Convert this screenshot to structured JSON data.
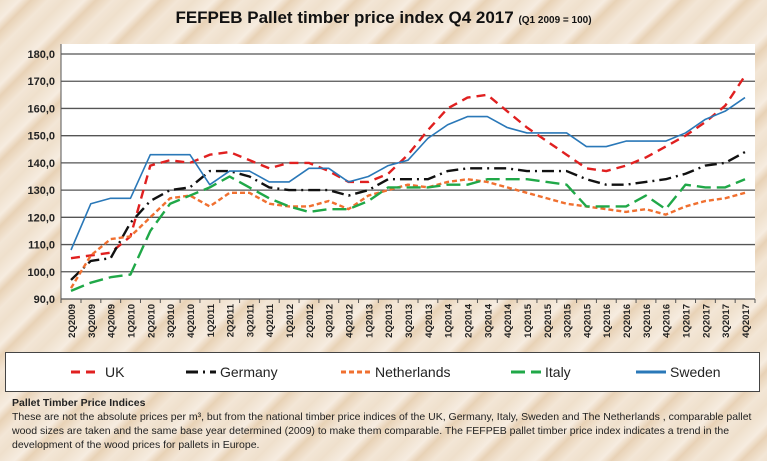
{
  "chart_data": {
    "type": "line",
    "title": "FEFPEB Pallet timber price index Q4 2017",
    "subtitle": "(Q1 2009 = 100)",
    "xlabel": "",
    "ylabel": "",
    "ylim": [
      90,
      180
    ],
    "yticks": [
      "90,0",
      "100,0",
      "110,0",
      "120,0",
      "130,0",
      "140,0",
      "150,0",
      "160,0",
      "170,0",
      "180,0"
    ],
    "grid": true,
    "legend_placement": "bottom",
    "categories": [
      "2Q2009",
      "3Q2009",
      "4Q2009",
      "1Q2010",
      "2Q2010",
      "3Q2010",
      "4Q2010",
      "1Q2011",
      "2Q2011",
      "3Q2011",
      "4Q2011",
      "1Q2012",
      "2Q2012",
      "3Q2012",
      "4Q2012",
      "1Q2013",
      "2Q2013",
      "3Q2013",
      "4Q2013",
      "1Q2014",
      "2Q2014",
      "3Q2014",
      "4Q2014",
      "1Q2015",
      "2Q2015",
      "3Q2015",
      "4Q2015",
      "1Q2016",
      "2Q2016",
      "3Q2016",
      "4Q2016",
      "1Q2017",
      "2Q2017",
      "3Q2017",
      "4Q2017"
    ],
    "series": [
      {
        "name": "UK",
        "color": "#e02020",
        "dash": "9,6",
        "values": [
          105,
          106,
          107,
          113,
          139,
          141,
          140,
          143,
          144,
          141,
          138,
          140,
          140,
          137,
          133,
          133,
          136,
          143,
          152,
          160,
          164,
          165,
          159,
          153,
          148,
          143,
          138,
          137,
          139,
          142,
          146,
          150,
          155,
          161,
          172
        ]
      },
      {
        "name": "Germany",
        "color": "#111111",
        "dash": "12,5,2,5",
        "values": [
          97,
          104,
          105,
          118,
          126,
          130,
          131,
          137,
          137,
          135,
          131,
          130,
          130,
          130,
          128,
          130,
          134,
          134,
          134,
          137,
          138,
          138,
          138,
          137,
          137,
          137,
          134,
          132,
          132,
          133,
          134,
          136,
          139,
          140,
          144
        ]
      },
      {
        "name": "Netherlands",
        "color": "#f07030",
        "dash": "5,3",
        "values": [
          94,
          106,
          112,
          113,
          120,
          127,
          128,
          124,
          129,
          129,
          125,
          124,
          124,
          126,
          123,
          128,
          130,
          132,
          131,
          133,
          134,
          133,
          131,
          129,
          127,
          125,
          124,
          123,
          122,
          123,
          121,
          124,
          126,
          127,
          129
        ]
      },
      {
        "name": "Italy",
        "color": "#20a848",
        "dash": "14,6",
        "values": [
          93,
          96,
          98,
          99,
          115,
          125,
          128,
          131,
          135,
          131,
          127,
          124,
          122,
          123,
          123,
          126,
          131,
          131,
          131,
          132,
          132,
          134,
          134,
          134,
          133,
          132,
          124,
          124,
          124,
          128,
          123,
          132,
          131,
          131,
          134
        ]
      },
      {
        "name": "Sweden",
        "color": "#2a78b8",
        "dash": "",
        "values": [
          108,
          125,
          127,
          127,
          143,
          143,
          143,
          132,
          137,
          137,
          133,
          133,
          138,
          138,
          133,
          135,
          139,
          141,
          149,
          154,
          157,
          157,
          153,
          151,
          151,
          151,
          146,
          146,
          148,
          148,
          148,
          151,
          156,
          159,
          164
        ]
      }
    ]
  },
  "notes": {
    "heading": "Pallet Timber Price Indices",
    "body": "These are not the absolute prices per m³, but from the national timber price indices of the UK, Germany, Italy, Sweden and The Netherlands , comparable pallet  wood sizes are taken and the same base year determined (2009) to make them comparable. The FEFPEB pallet timber price index indicates a trend in the development of the wood prices for pallets in Europe."
  }
}
